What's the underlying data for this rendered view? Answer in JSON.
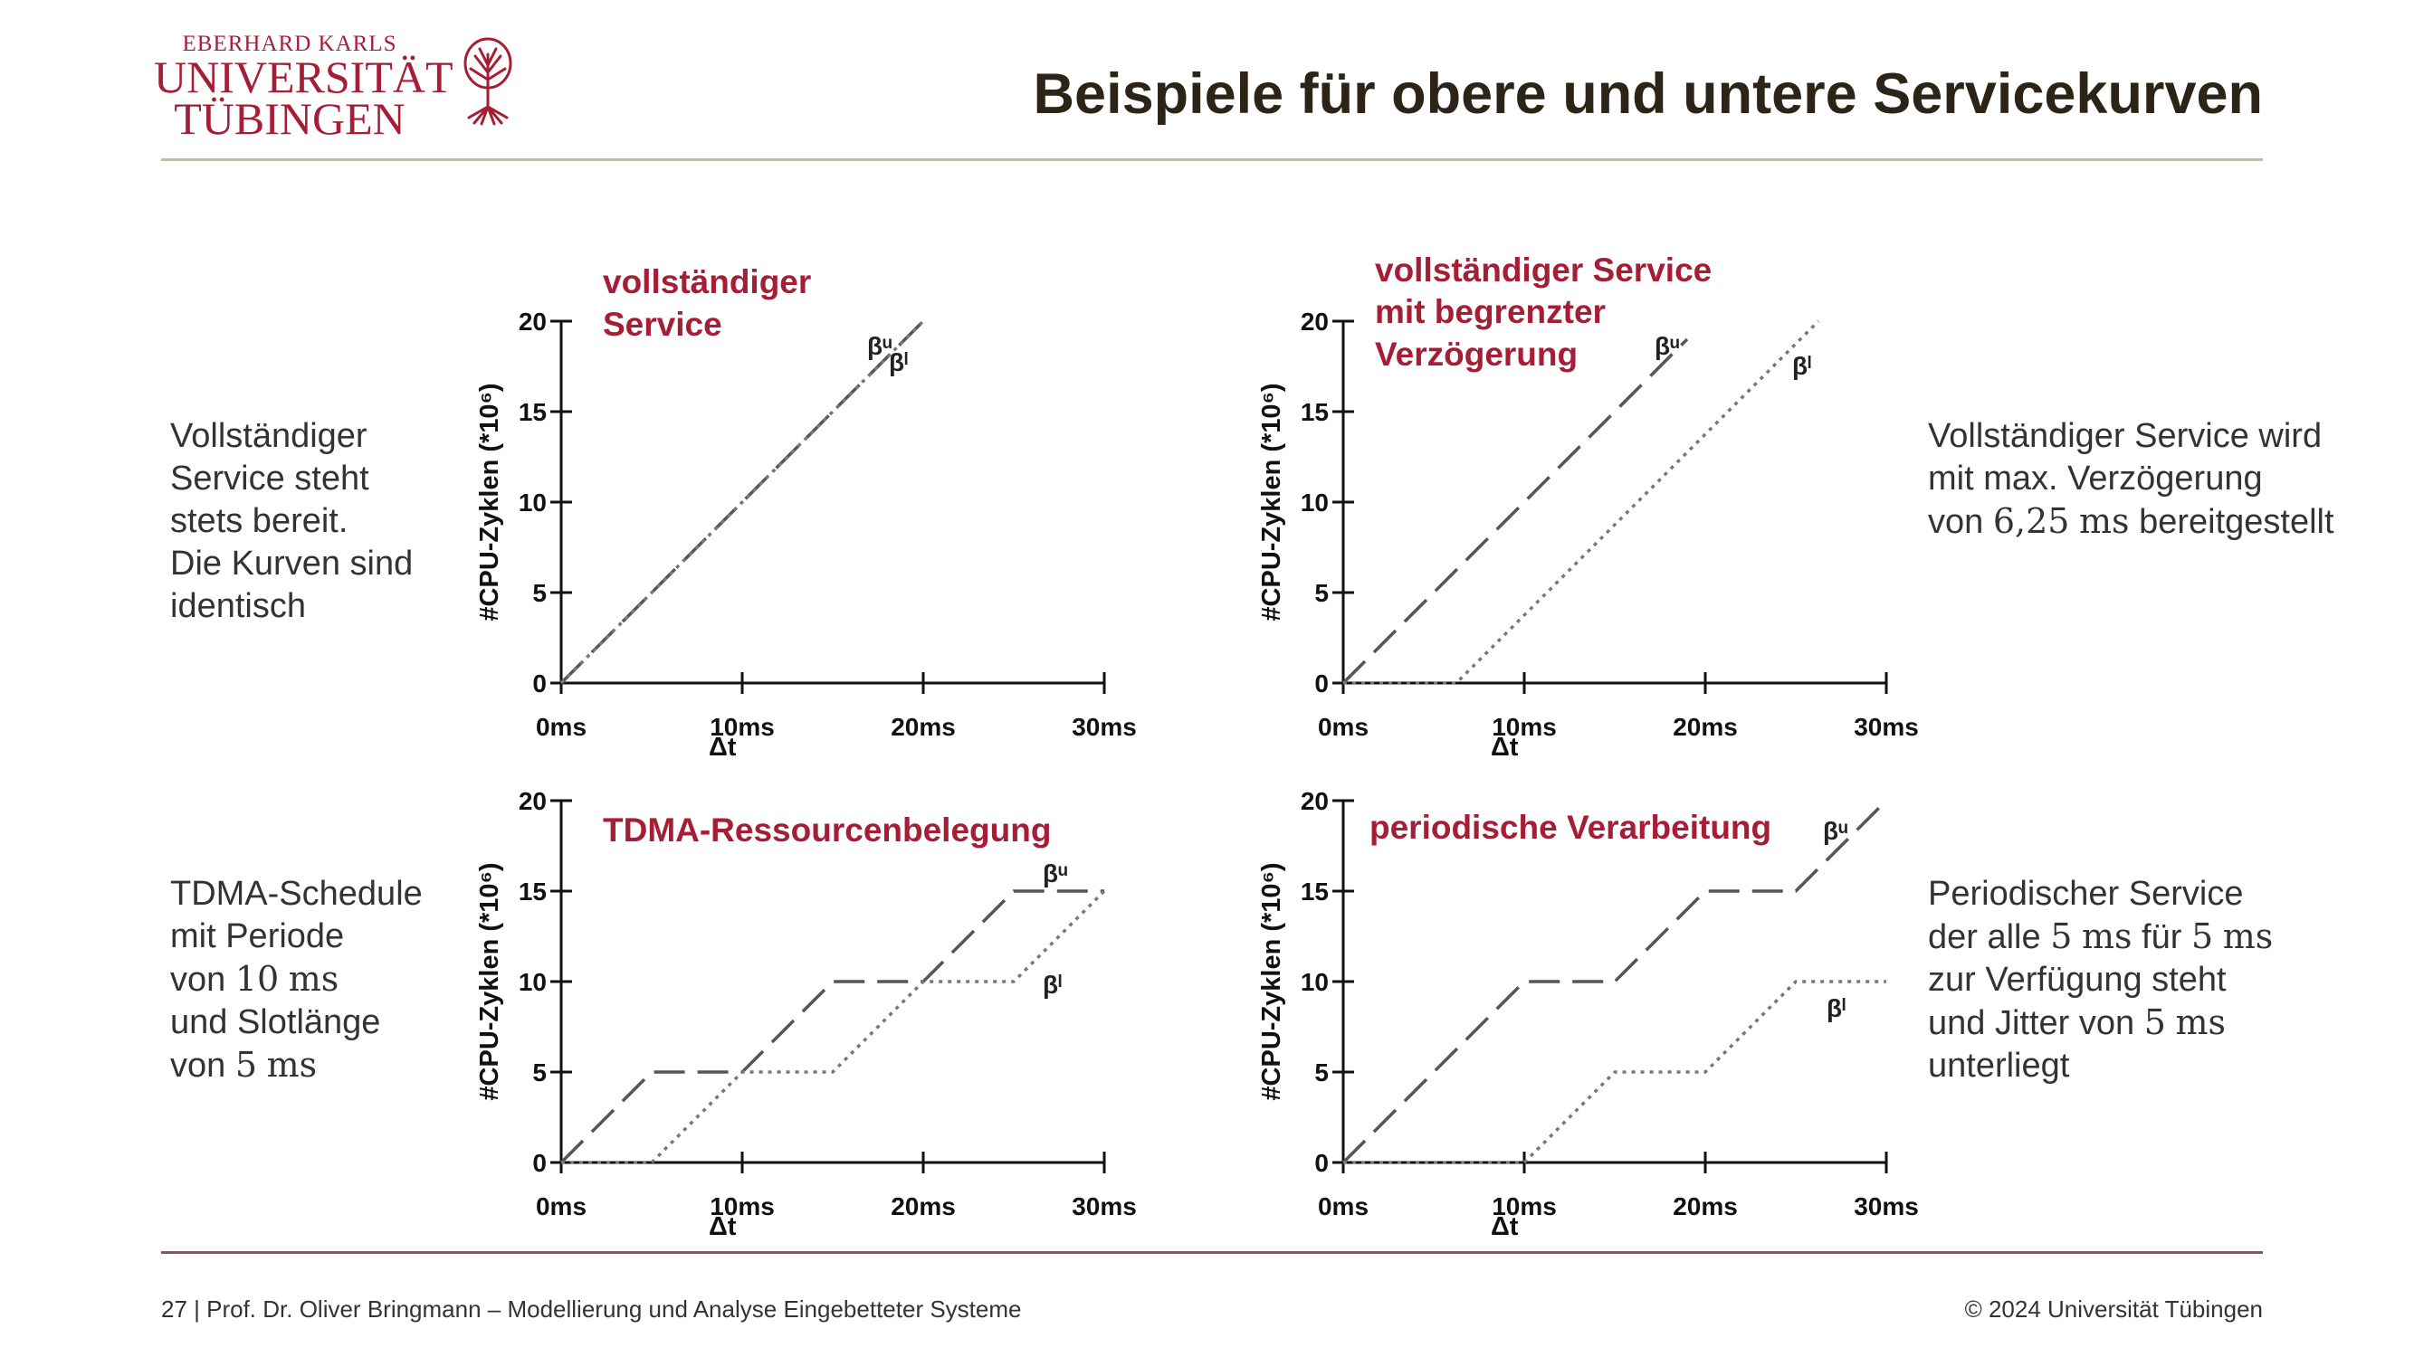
{
  "header": {
    "logo": {
      "line1": "EBERHARD KARLS",
      "line2": "UNIVERSITÄT",
      "line3": "TÜBINGEN"
    },
    "title": "Beispiele für obere und untere Servicekurven"
  },
  "descriptions": {
    "top_left": [
      "Vollständiger",
      "Service steht",
      "stets bereit.",
      "Die Kurven sind",
      "identisch"
    ],
    "top_right": [
      "Vollständiger Service wird",
      "mit max. Verzögerung"
    ],
    "top_right_last": {
      "pre": "von ",
      "value": "6,25",
      "unit": "ms",
      "post": " bereitgestellt"
    },
    "bottom_left": {
      "l1": "TDMA-Schedule",
      "l2": "mit Periode",
      "l3_pre": "von ",
      "l3_value": "10",
      "l3_unit": "ms",
      "l4": "und Slotlänge",
      "l5_pre": "von ",
      "l5_value": "5",
      "l5_unit": "ms"
    },
    "bottom_right": {
      "l1": "Periodischer Service",
      "l2_pre": "der alle ",
      "l2_v1": "5",
      "l2_u1": "ms",
      "l2_mid": " für ",
      "l2_v2": "5",
      "l2_u2": "ms",
      "l3": "zur Verfügung steht",
      "l4_pre": "und Jitter von ",
      "l4_value": "5",
      "l4_unit": "ms",
      "l5": "unterliegt"
    }
  },
  "footer": {
    "left": "27 | Prof. Dr. Oliver Bringmann – Modellierung und Analyse Eingebetteter Systeme",
    "right": "© 2024 Universität Tübingen"
  },
  "colors": {
    "accent": "#a51e36",
    "title": "#2b2417"
  },
  "chart_data": [
    {
      "type": "line",
      "title": [
        "vollständiger",
        "Service"
      ],
      "xlabel": "Δt",
      "ylabel": "#CPU-Zyklen (*10⁶)",
      "xticks": [
        "0ms",
        "10ms",
        "20ms",
        "30ms"
      ],
      "xlim": [
        0,
        30
      ],
      "yticks": [
        "0",
        "5",
        "10",
        "15",
        "20"
      ],
      "ylim": [
        0,
        20
      ],
      "series": [
        {
          "name": "βᵘ",
          "style": "dashed",
          "x": [
            0,
            20
          ],
          "y": [
            0,
            20
          ]
        },
        {
          "name": "βˡ",
          "style": "dotted",
          "x": [
            0,
            20
          ],
          "y": [
            0,
            20
          ]
        }
      ]
    },
    {
      "type": "line",
      "title": [
        "vollständiger Service",
        "mit begrenzter",
        "Verzögerung"
      ],
      "xlabel": "Δt",
      "ylabel": "#CPU-Zyklen (*10⁶)",
      "xticks": [
        "0ms",
        "10ms",
        "20ms",
        "30ms"
      ],
      "xlim": [
        0,
        30
      ],
      "yticks": [
        "0",
        "5",
        "10",
        "15",
        "20"
      ],
      "ylim": [
        0,
        20
      ],
      "series": [
        {
          "name": "βᵘ",
          "style": "dashed",
          "x": [
            0,
            19
          ],
          "y": [
            0,
            19
          ]
        },
        {
          "name": "βˡ",
          "style": "dotted",
          "x": [
            0,
            6.25,
            26.25
          ],
          "y": [
            0,
            0,
            20
          ]
        }
      ]
    },
    {
      "type": "line",
      "title": [
        "TDMA-Ressourcenbelegung"
      ],
      "xlabel": "Δt",
      "ylabel": "#CPU-Zyklen (*10⁶)",
      "xticks": [
        "0ms",
        "10ms",
        "20ms",
        "30ms"
      ],
      "xlim": [
        0,
        30
      ],
      "yticks": [
        "0",
        "5",
        "10",
        "15",
        "20"
      ],
      "ylim": [
        0,
        20
      ],
      "series": [
        {
          "name": "βᵘ",
          "style": "dashed",
          "x": [
            0,
            5,
            10,
            15,
            20,
            25,
            30
          ],
          "y": [
            0,
            5,
            5,
            10,
            10,
            15,
            15
          ]
        },
        {
          "name": "βˡ",
          "style": "dotted",
          "x": [
            0,
            5,
            10,
            15,
            20,
            25,
            30
          ],
          "y": [
            0,
            0,
            5,
            5,
            10,
            10,
            15
          ]
        }
      ]
    },
    {
      "type": "line",
      "title": [
        "periodische Verarbeitung"
      ],
      "xlabel": "Δt",
      "ylabel": "#CPU-Zyklen (*10⁶)",
      "xticks": [
        "0ms",
        "10ms",
        "20ms",
        "30ms"
      ],
      "xlim": [
        0,
        30
      ],
      "yticks": [
        "0",
        "5",
        "10",
        "15",
        "20"
      ],
      "ylim": [
        0,
        20
      ],
      "series": [
        {
          "name": "βᵘ",
          "style": "dashed",
          "x": [
            0,
            10,
            15,
            20,
            25,
            30
          ],
          "y": [
            0,
            10,
            10,
            15,
            15,
            20
          ]
        },
        {
          "name": "βˡ",
          "style": "dotted",
          "x": [
            0,
            10,
            15,
            20,
            25,
            30
          ],
          "y": [
            0,
            0,
            5,
            5,
            10,
            10
          ]
        }
      ]
    }
  ]
}
